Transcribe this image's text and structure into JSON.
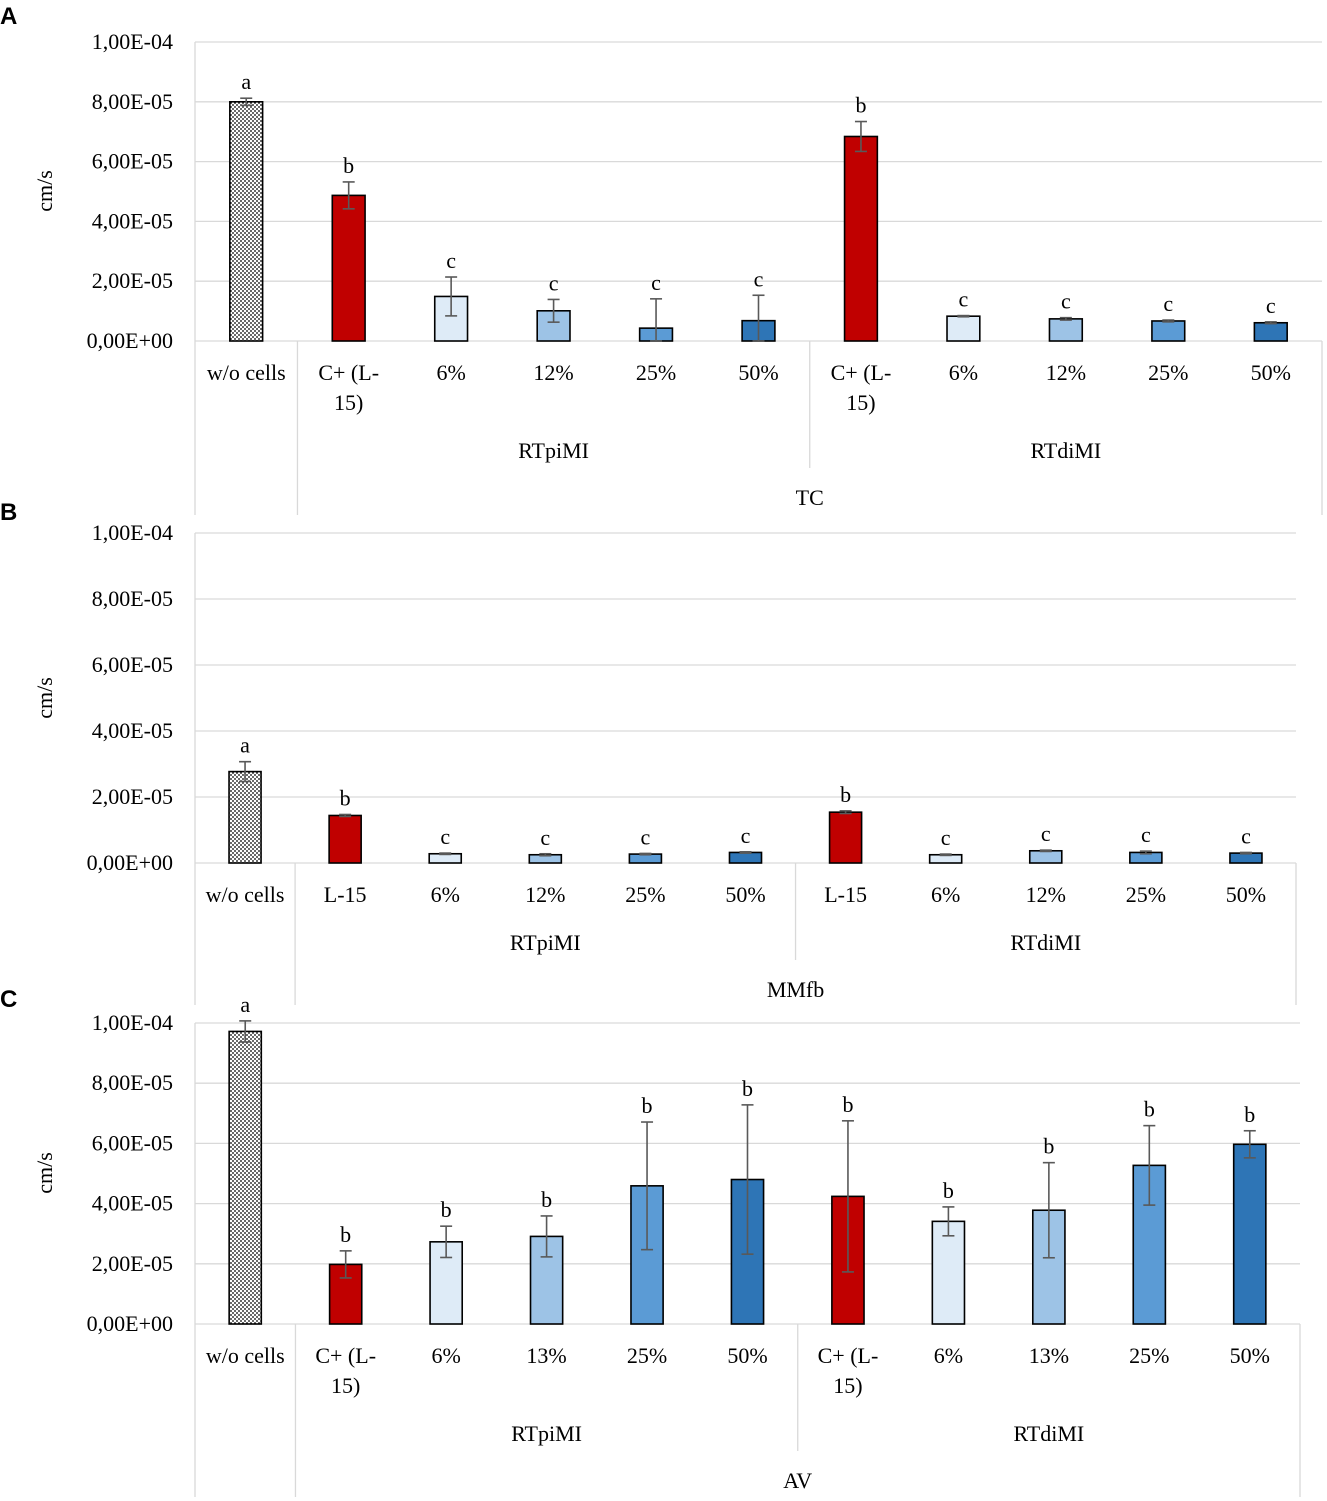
{
  "colors": {
    "wo_cells": "#ffffff",
    "control": "#c00000",
    "c6": "#deebf7",
    "c12": "#9dc3e6",
    "c25": "#5b9bd5",
    "c50": "#2e75b6",
    "grid": "#d9d9d9",
    "error": "#595959"
  },
  "chart_data": [
    {
      "panel": "A",
      "type": "bar",
      "ylabel": "cm/s",
      "ylim": [
        0,
        0.0001
      ],
      "yticks": [
        "0,00E+00",
        "2,00E-05",
        "4,00E-05",
        "6,00E-05",
        "8,00E-05",
        "1,00E-04"
      ],
      "categories": [
        "w/o cells",
        "C+ (L-15)",
        "6%",
        "12%",
        "25%",
        "50%",
        "C+ (L-15)",
        "6%",
        "12%",
        "25%",
        "50%"
      ],
      "category_lines": [
        [
          "w/o cells"
        ],
        [
          "C+ (L-",
          "15)"
        ],
        [
          "6%"
        ],
        [
          "12%"
        ],
        [
          "25%"
        ],
        [
          "50%"
        ],
        [
          "C+ (L-",
          "15)"
        ],
        [
          "6%"
        ],
        [
          "12%"
        ],
        [
          "25%"
        ],
        [
          "50%"
        ]
      ],
      "values": [
        8e-05,
        4.87e-05,
        1.49e-05,
        1.01e-05,
        4.3e-06,
        6.8e-06,
        6.84e-05,
        8.3e-06,
        7.4e-06,
        6.7e-06,
        6.1e-06
      ],
      "errors": [
        1.2e-06,
        4.5e-06,
        6.5e-06,
        3.8e-06,
        9.8e-06,
        8.5e-06,
        5e-06,
        2e-07,
        4e-07,
        3e-07,
        3e-07
      ],
      "significance": [
        "a",
        "b",
        "c",
        "c",
        "c",
        "c",
        "b",
        "c",
        "c",
        "c",
        "c"
      ],
      "color_keys": [
        "wo_cells",
        "control",
        "c6",
        "c12",
        "c25",
        "c50",
        "control",
        "c6",
        "c12",
        "c25",
        "c50"
      ],
      "groups": [
        "RTpiMI",
        "RTdiMI"
      ],
      "supergroup": "TC"
    },
    {
      "panel": "B",
      "type": "bar",
      "ylabel": "cm/s",
      "ylim": [
        0,
        0.0001
      ],
      "yticks": [
        "0,00E+00",
        "2,00E-05",
        "4,00E-05",
        "6,00E-05",
        "8,00E-05",
        "1,00E-04"
      ],
      "categories": [
        "w/o cells",
        "L-15",
        "6%",
        "12%",
        "25%",
        "50%",
        "L-15",
        "6%",
        "12%",
        "25%",
        "50%"
      ],
      "category_lines": [
        [
          "w/o cells"
        ],
        [
          "L-15"
        ],
        [
          "6%"
        ],
        [
          "12%"
        ],
        [
          "25%"
        ],
        [
          "50%"
        ],
        [
          "L-15"
        ],
        [
          "6%"
        ],
        [
          "12%"
        ],
        [
          "25%"
        ],
        [
          "50%"
        ]
      ],
      "values": [
        2.77e-05,
        1.44e-05,
        2.8e-06,
        2.5e-06,
        2.7e-06,
        3.2e-06,
        1.54e-05,
        2.5e-06,
        3.7e-06,
        3.2e-06,
        3e-06
      ],
      "errors": [
        3e-06,
        3e-07,
        2e-07,
        3e-07,
        2e-07,
        2e-07,
        4e-07,
        2e-07,
        2e-07,
        4e-07,
        2e-07
      ],
      "significance": [
        "a",
        "b",
        "c",
        "c",
        "c",
        "c",
        "b",
        "c",
        "c",
        "c",
        "c"
      ],
      "color_keys": [
        "wo_cells",
        "control",
        "c6",
        "c12",
        "c25",
        "c50",
        "control",
        "c6",
        "c12",
        "c25",
        "c50"
      ],
      "groups": [
        "RTpiMI",
        "RTdiMI"
      ],
      "supergroup": "MMfb"
    },
    {
      "panel": "C",
      "type": "bar",
      "ylabel": "cm/s",
      "ylim": [
        0,
        0.0001
      ],
      "yticks": [
        "0,00E+00",
        "2,00E-05",
        "4,00E-05",
        "6,00E-05",
        "8,00E-05",
        "1,00E-04"
      ],
      "categories": [
        "w/o cells",
        "C+ (L-15)",
        "6%",
        "13%",
        "25%",
        "50%",
        "C+ (L-15)",
        "6%",
        "13%",
        "25%",
        "50%"
      ],
      "category_lines": [
        [
          "w/o cells"
        ],
        [
          "C+ (L-",
          "15)"
        ],
        [
          "6%"
        ],
        [
          "13%"
        ],
        [
          "25%"
        ],
        [
          "50%"
        ],
        [
          "C+ (L-",
          "15)"
        ],
        [
          "6%"
        ],
        [
          "13%"
        ],
        [
          "25%"
        ],
        [
          "50%"
        ]
      ],
      "values": [
        9.72e-05,
        1.98e-05,
        2.73e-05,
        2.91e-05,
        4.59e-05,
        4.8e-05,
        4.24e-05,
        3.41e-05,
        3.78e-05,
        5.27e-05,
        5.97e-05
      ],
      "errors": [
        3.5e-06,
        4.5e-06,
        5.2e-06,
        6.8e-06,
        2.12e-05,
        2.48e-05,
        2.51e-05,
        4.8e-06,
        1.58e-05,
        1.32e-05,
        4.5e-06
      ],
      "significance": [
        "a",
        "b",
        "b",
        "b",
        "b",
        "b",
        "b",
        "b",
        "b",
        "b",
        "b"
      ],
      "color_keys": [
        "wo_cells",
        "control",
        "c6",
        "c12",
        "c25",
        "c50",
        "control",
        "c6",
        "c12",
        "c25",
        "c50"
      ],
      "groups": [
        "RTpiMI",
        "RTdiMI"
      ],
      "supergroup": "AV"
    }
  ]
}
